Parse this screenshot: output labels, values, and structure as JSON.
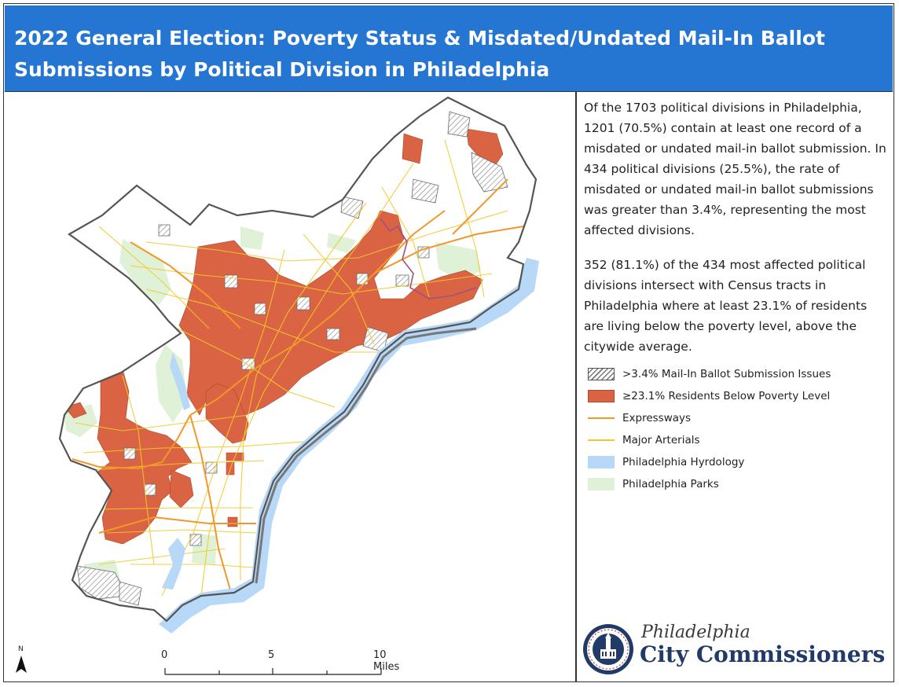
{
  "title": "2022 General Election: Poverty Status & Misdated/Undated Mail-In Ballot Submissions by Political Division in Philadelphia",
  "description": [
    "Of the 1703 political divisions in Philadelphia, 1201 (70.5%) contain at least one record of a misdated or undated mail-in ballot submission. In 434 political divisions (25.5%), the rate of misdated or undated mail-in ballot submissions was greater than 3.4%, representing the most affected divisions.",
    "352 (81.1%) of the 434 most affected political divisions intersect with Census tracts in Philadelphia where at least 23.1% of residents are living below the poverty level, above the citywide average."
  ],
  "legend": [
    {
      "label": ">3.4% Mail-In Ballot Submission Issues",
      "symbol": "hatch"
    },
    {
      "label": "≥23.1% Residents Below Poverty Level",
      "symbol": "poverty-fill",
      "color": "#d96342"
    },
    {
      "label": "Expressways",
      "symbol": "line",
      "color": "#f0982a"
    },
    {
      "label": "Major Arterials",
      "symbol": "line",
      "color": "#f3c92a"
    },
    {
      "label": "Philadelphia Hyrdology",
      "symbol": "fill",
      "color": "#b8d8f7"
    },
    {
      "label": "Philadelphia Parks",
      "symbol": "fill",
      "color": "#dff1d6"
    }
  ],
  "scale_bar": {
    "ticks": [
      "0",
      "5",
      "10 Miles"
    ]
  },
  "north_arrow": {
    "label": "N",
    "icon": "north-arrow-icon"
  },
  "logo": {
    "line1": "Philadelphia",
    "line2": "City Commissioners",
    "icon": "city-hall-seal-icon"
  },
  "colors": {
    "header": "#2476d2",
    "poverty": "#d96342",
    "hydrology": "#b8d8f7",
    "parks": "#dff1d6",
    "expressway": "#f0982a",
    "arterial": "#f3c92a"
  }
}
